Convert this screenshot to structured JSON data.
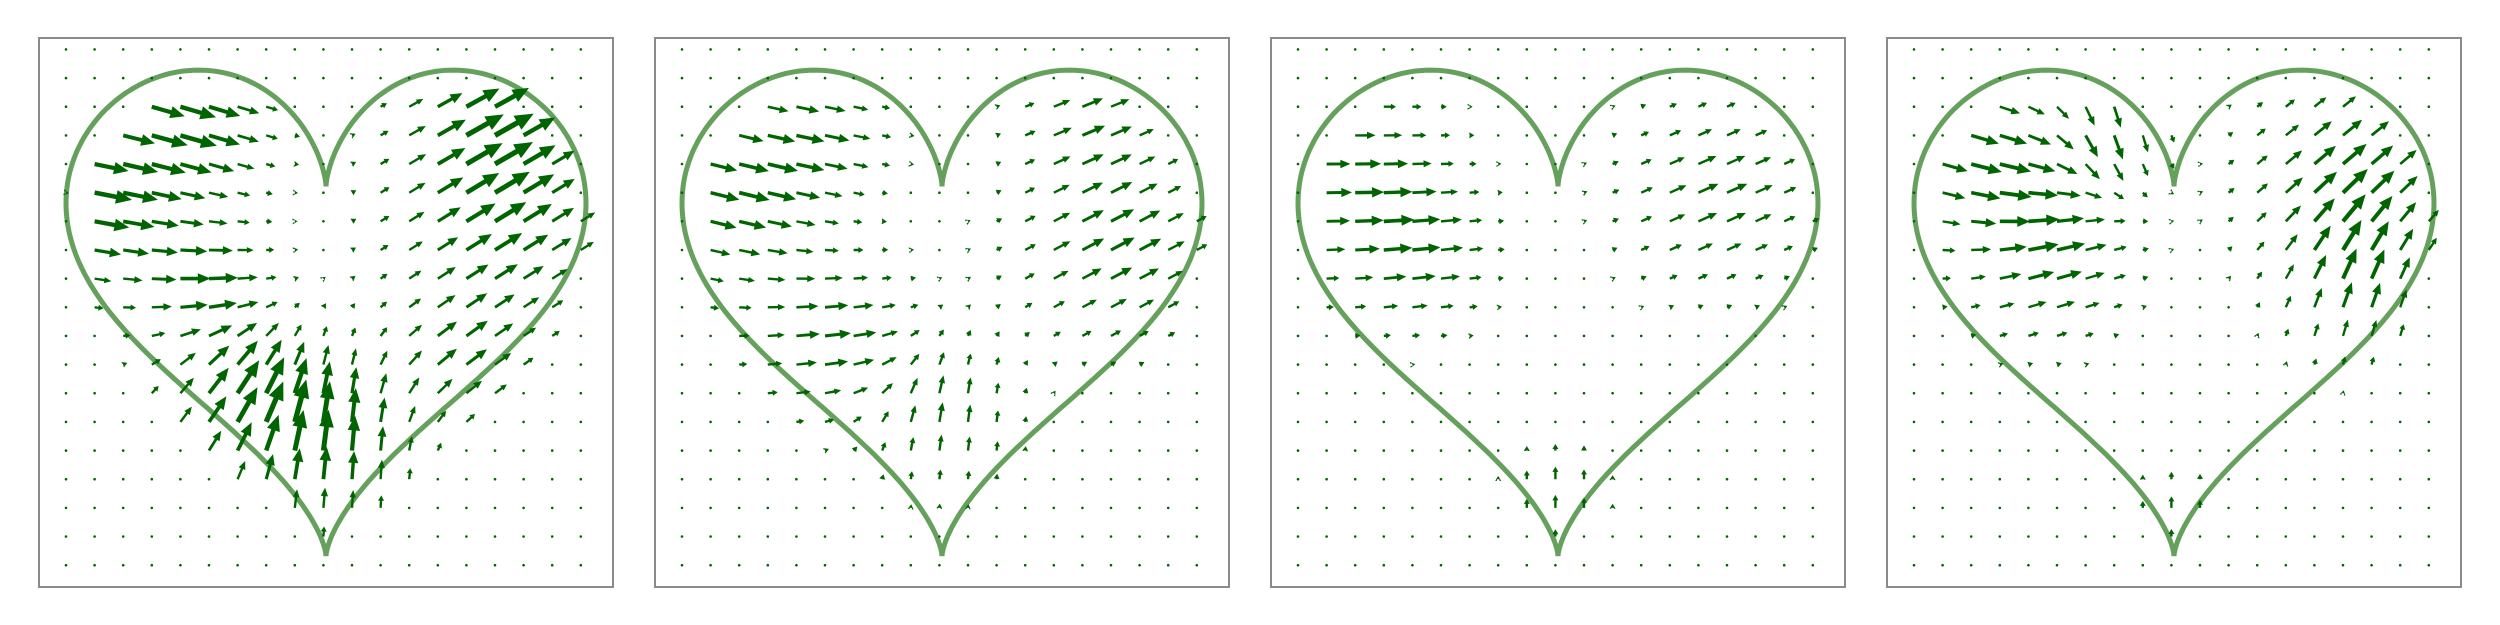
{
  "chart_data": [
    {
      "type": "quiver",
      "title": "",
      "xlabel": "",
      "ylabel": "",
      "xlim": [
        -1.1,
        1.1
      ],
      "ylim": [
        -1.05,
        1.05
      ],
      "grid": "none",
      "axes": "off",
      "colors": {
        "arrow": "#006400",
        "curve": "#4a8f3f",
        "frame": "#8a8a8a"
      },
      "curve": "heart",
      "grid_points": {
        "x_start": -1.0,
        "y_start": -0.97,
        "step": 0.11,
        "nx": 19,
        "ny": 19
      },
      "pattern": {
        "sources": [
          {
            "x": -0.95,
            "y": 0.42,
            "ux": 1.0,
            "uy": -0.18,
            "w": 0.22,
            "amp": 0.75
          },
          {
            "x": -0.55,
            "y": 0.75,
            "ux": 1.0,
            "uy": -0.3,
            "w": 0.22,
            "amp": 0.75
          },
          {
            "x": -0.5,
            "y": 0.1,
            "ux": 1.0,
            "uy": 0.0,
            "w": 0.18,
            "amp": 0.6
          },
          {
            "x": -0.35,
            "y": -0.35,
            "ux": 0.55,
            "uy": 0.7,
            "w": 0.2,
            "amp": 0.8
          },
          {
            "x": 0.0,
            "y": -0.5,
            "ux": 0.05,
            "uy": 0.95,
            "w": 0.22,
            "amp": 0.85
          },
          {
            "x": 0.65,
            "y": 0.35,
            "ux": 0.8,
            "uy": 0.5,
            "w": 0.28,
            "amp": 0.75
          },
          {
            "x": 0.6,
            "y": 0.75,
            "ux": 0.85,
            "uy": 0.45,
            "w": 0.2,
            "amp": 0.7
          },
          {
            "x": 0.5,
            "y": -0.2,
            "ux": 0.75,
            "uy": 0.55,
            "w": 0.18,
            "amp": 0.5
          }
        ]
      }
    },
    {
      "type": "quiver",
      "title": "",
      "xlabel": "",
      "ylabel": "",
      "xlim": [
        -1.1,
        1.1
      ],
      "ylim": [
        -1.05,
        1.05
      ],
      "grid": "none",
      "axes": "off",
      "colors": {
        "arrow": "#006400",
        "curve": "#4a8f3f",
        "frame": "#8a8a8a"
      },
      "curve": "heart",
      "grid_points": {
        "x_start": -1.0,
        "y_start": -0.97,
        "step": 0.11,
        "nx": 19,
        "ny": 19
      },
      "pattern": {
        "sources": [
          {
            "x": -0.85,
            "y": 0.45,
            "ux": 1.0,
            "uy": -0.25,
            "w": 0.24,
            "amp": 0.6
          },
          {
            "x": -0.5,
            "y": 0.7,
            "ux": 1.0,
            "uy": -0.2,
            "w": 0.2,
            "amp": 0.45
          },
          {
            "x": -0.45,
            "y": -0.1,
            "ux": 1.0,
            "uy": 0.1,
            "w": 0.22,
            "amp": 0.55
          },
          {
            "x": 0.0,
            "y": -0.4,
            "ux": 0.1,
            "uy": 0.95,
            "w": 0.2,
            "amp": 0.45
          },
          {
            "x": 0.65,
            "y": 0.25,
            "ux": 0.85,
            "uy": 0.45,
            "w": 0.26,
            "amp": 0.6
          },
          {
            "x": 0.55,
            "y": 0.75,
            "ux": 0.9,
            "uy": 0.35,
            "w": 0.18,
            "amp": 0.45
          }
        ]
      }
    },
    {
      "type": "quiver",
      "title": "",
      "xlabel": "",
      "ylabel": "",
      "xlim": [
        -1.1,
        1.1
      ],
      "ylim": [
        -1.05,
        1.05
      ],
      "grid": "none",
      "axes": "off",
      "colors": {
        "arrow": "#006400",
        "curve": "#4a8f3f",
        "frame": "#8a8a8a"
      },
      "curve": "heart",
      "grid_points": {
        "x_start": -1.0,
        "y_start": -0.97,
        "step": 0.11,
        "nx": 19,
        "ny": 19
      },
      "pattern": {
        "sources": [
          {
            "x": -0.8,
            "y": 0.5,
            "ux": 1.0,
            "uy": 0.0,
            "w": 0.26,
            "amp": 0.55
          },
          {
            "x": -0.55,
            "y": 0.2,
            "ux": 1.0,
            "uy": 0.15,
            "w": 0.2,
            "amp": 0.4
          },
          {
            "x": 0.6,
            "y": 0.45,
            "ux": 0.9,
            "uy": 0.4,
            "w": 0.26,
            "amp": 0.5
          },
          {
            "x": 0.0,
            "y": -0.7,
            "ux": 0.0,
            "uy": 1.0,
            "w": 0.14,
            "amp": 0.3
          }
        ]
      }
    },
    {
      "type": "quiver",
      "title": "",
      "xlabel": "",
      "ylabel": "",
      "xlim": [
        -1.1,
        1.1
      ],
      "ylim": [
        -1.05,
        1.05
      ],
      "grid": "none",
      "axes": "off",
      "colors": {
        "arrow": "#006400",
        "curve": "#4a8f3f",
        "frame": "#8a8a8a"
      },
      "curve": "heart",
      "grid_points": {
        "x_start": -1.0,
        "y_start": -0.97,
        "step": 0.11,
        "nx": 19,
        "ny": 19
      },
      "pattern": {
        "sources": [
          {
            "x": -0.75,
            "y": 0.6,
            "ux": 0.95,
            "uy": -0.3,
            "w": 0.24,
            "amp": 0.65
          },
          {
            "x": -0.5,
            "y": 0.2,
            "ux": 0.9,
            "uy": 0.3,
            "w": 0.22,
            "amp": 0.6
          },
          {
            "x": -0.25,
            "y": 0.7,
            "ux": 0.2,
            "uy": -0.95,
            "w": 0.16,
            "amp": 0.55
          },
          {
            "x": 0.65,
            "y": 0.5,
            "ux": 0.75,
            "uy": 0.6,
            "w": 0.26,
            "amp": 0.7
          },
          {
            "x": 0.7,
            "y": 0.1,
            "ux": 0.2,
            "uy": 0.95,
            "w": 0.2,
            "amp": 0.55
          },
          {
            "x": 0.0,
            "y": -0.75,
            "ux": 0.0,
            "uy": 1.0,
            "w": 0.12,
            "amp": 0.25
          }
        ]
      }
    }
  ]
}
